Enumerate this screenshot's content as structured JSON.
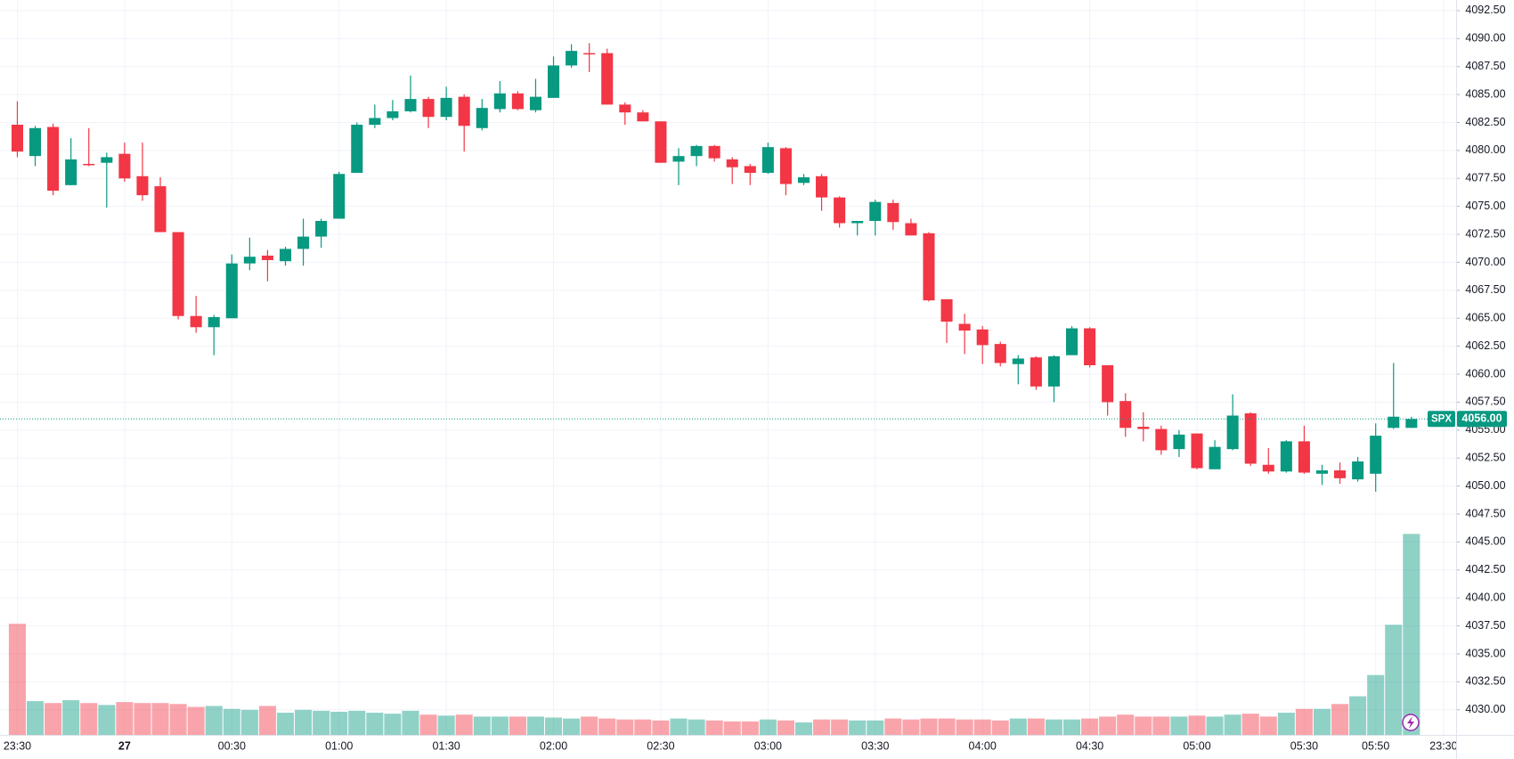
{
  "chart_data": {
    "type": "candlestick",
    "open": [
      4082.3,
      4079.5,
      4082.1,
      4076.9,
      4078.8,
      4078.9,
      4079.7,
      4077.7,
      4076.8,
      4072.7,
      4065.2,
      4064.2,
      4065.0,
      4069.9,
      4070.6,
      4070.1,
      4071.2,
      4072.3,
      4073.9,
      4078.0,
      4082.3,
      4082.9,
      4083.5,
      4084.6,
      4083.0,
      4084.8,
      4082.0,
      4083.7,
      4085.1,
      4083.6,
      4084.7,
      4087.6,
      4088.7,
      4088.7,
      4084.1,
      4083.4,
      4082.6,
      4079.0,
      4079.5,
      4080.4,
      4079.2,
      4078.6,
      4078.0,
      4080.2,
      4077.1,
      4077.7,
      4075.8,
      4073.5,
      4073.7,
      4075.3,
      4073.5,
      4072.6,
      4066.7,
      4064.5,
      4064.0,
      4062.7,
      4060.9,
      4061.5,
      4058.9,
      4061.7,
      4064.1,
      4060.8,
      4057.6,
      4055.3,
      4055.1,
      4053.3,
      4054.7,
      4051.5,
      4053.3,
      4056.5,
      4051.9,
      4051.3,
      4054.0,
      4051.1,
      4051.4,
      4050.6,
      4051.1,
      4055.2,
      4055.2
    ],
    "high": [
      4084.4,
      4082.2,
      4082.4,
      4081.1,
      4082.0,
      4079.8,
      4080.7,
      4080.7,
      4077.6,
      4072.7,
      4067.0,
      4065.3,
      4070.7,
      4072.2,
      4071.1,
      4071.4,
      4073.9,
      4073.9,
      4078.1,
      4082.5,
      4084.1,
      4084.5,
      4086.7,
      4084.8,
      4085.7,
      4085.0,
      4084.6,
      4086.2,
      4085.3,
      4086.4,
      4088.4,
      4089.5,
      4089.6,
      4089.1,
      4084.3,
      4083.6,
      4082.6,
      4080.2,
      4080.5,
      4080.5,
      4079.4,
      4078.8,
      4080.7,
      4080.3,
      4077.9,
      4077.9,
      4075.9,
      4073.7,
      4075.6,
      4075.6,
      4073.9,
      4072.7,
      4066.7,
      4065.4,
      4064.3,
      4062.9,
      4061.7,
      4061.6,
      4061.7,
      4064.3,
      4064.2,
      4060.8,
      4058.3,
      4056.6,
      4055.4,
      4055.0,
      4054.7,
      4054.1,
      4058.2,
      4056.6,
      4053.4,
      4054.1,
      4055.4,
      4051.9,
      4052.1,
      4052.6,
      4055.6,
      4061.0,
      4056.2
    ],
    "low": [
      4079.4,
      4078.6,
      4076.0,
      4076.9,
      4078.6,
      4074.9,
      4077.2,
      4075.5,
      4072.7,
      4064.9,
      4063.7,
      4061.7,
      4065.0,
      4069.3,
      4068.3,
      4069.7,
      4069.7,
      4071.3,
      4073.9,
      4078.0,
      4082.0,
      4082.7,
      4083.4,
      4082.0,
      4082.7,
      4079.9,
      4081.8,
      4083.4,
      4083.6,
      4083.4,
      4084.7,
      4087.4,
      4087.0,
      4084.1,
      4082.3,
      4082.6,
      4078.9,
      4076.9,
      4078.6,
      4079.0,
      4077.0,
      4076.9,
      4077.9,
      4076.0,
      4076.9,
      4074.6,
      4073.1,
      4072.4,
      4072.4,
      4072.9,
      4072.4,
      4066.5,
      4062.8,
      4061.8,
      4060.9,
      4060.7,
      4059.1,
      4058.6,
      4057.5,
      4061.7,
      4060.6,
      4056.3,
      4054.4,
      4054.0,
      4052.8,
      4052.6,
      4051.5,
      4051.5,
      4053.2,
      4051.8,
      4051.1,
      4051.2,
      4051.1,
      4050.1,
      4050.2,
      4050.4,
      4049.5,
      4055.1,
      4055.2
    ],
    "close": [
      4079.9,
      4082.0,
      4076.4,
      4079.2,
      4078.7,
      4079.4,
      4077.5,
      4076.0,
      4072.7,
      4065.2,
      4064.2,
      4065.1,
      4069.9,
      4070.5,
      4070.2,
      4071.2,
      4072.3,
      4073.7,
      4077.9,
      4082.3,
      4082.9,
      4083.5,
      4084.6,
      4083.0,
      4084.7,
      4082.2,
      4083.8,
      4085.1,
      4083.7,
      4084.8,
      4087.6,
      4088.9,
      4088.6,
      4084.1,
      4083.4,
      4082.6,
      4078.9,
      4079.5,
      4080.4,
      4079.3,
      4078.5,
      4078.0,
      4080.3,
      4077.0,
      4077.6,
      4075.8,
      4073.5,
      4073.7,
      4075.4,
      4073.6,
      4072.4,
      4066.6,
      4064.7,
      4063.9,
      4062.6,
      4061.0,
      4061.4,
      4058.9,
      4061.6,
      4064.1,
      4060.8,
      4057.5,
      4055.2,
      4055.1,
      4053.2,
      4054.6,
      4051.6,
      4053.5,
      4056.3,
      4052.0,
      4051.3,
      4054.0,
      4051.2,
      4051.4,
      4050.7,
      4052.2,
      4054.5,
      4056.2,
      4056.0
    ],
    "volume": [
      115,
      35,
      33,
      36,
      33,
      31,
      34,
      33,
      33,
      32,
      29,
      30,
      27,
      26,
      30,
      23,
      26,
      25,
      24,
      25,
      23,
      22,
      25,
      21,
      20,
      21,
      19,
      19,
      19,
      19,
      18,
      17,
      19,
      17,
      16,
      16,
      15,
      17,
      16,
      15,
      14,
      14,
      16,
      15,
      13,
      16,
      16,
      15,
      15,
      17,
      16,
      17,
      17,
      16,
      16,
      15,
      17,
      17,
      16,
      16,
      17,
      19,
      21,
      19,
      19,
      19,
      20,
      19,
      21,
      22,
      19,
      23,
      27,
      27,
      32,
      40,
      62,
      114,
      208
    ],
    "up_color": "#089981",
    "down_color": "#f23645",
    "ylim": [
      4027.75,
      4093.45
    ],
    "yticks": [
      {
        "value": 4030,
        "label": "4030.00"
      },
      {
        "value": 4032.5,
        "label": "4032.50"
      },
      {
        "value": 4035,
        "label": "4035.00"
      },
      {
        "value": 4037.5,
        "label": "4037.50"
      },
      {
        "value": 4040,
        "label": "4040.00"
      },
      {
        "value": 4042.5,
        "label": "4042.50"
      },
      {
        "value": 4045,
        "label": "4045.00"
      },
      {
        "value": 4047.5,
        "label": "4047.50"
      },
      {
        "value": 4050,
        "label": "4050.00"
      },
      {
        "value": 4052.5,
        "label": "4052.50"
      },
      {
        "value": 4055,
        "label": "4055.00"
      },
      {
        "value": 4057.5,
        "label": "4057.50"
      },
      {
        "value": 4060,
        "label": "4060.00"
      },
      {
        "value": 4062.5,
        "label": "4062.50"
      },
      {
        "value": 4065,
        "label": "4065.00"
      },
      {
        "value": 4067.5,
        "label": "4067.50"
      },
      {
        "value": 4070,
        "label": "4070.00"
      },
      {
        "value": 4072.5,
        "label": "4072.50"
      },
      {
        "value": 4075,
        "label": "4075.00"
      },
      {
        "value": 4077.5,
        "label": "4077.50"
      },
      {
        "value": 4080,
        "label": "4080.00"
      },
      {
        "value": 4082.5,
        "label": "4082.50"
      },
      {
        "value": 4085,
        "label": "4085.00"
      },
      {
        "value": 4087.5,
        "label": "4087.50"
      },
      {
        "value": 4090,
        "label": "4090.00"
      },
      {
        "value": 4092.5,
        "label": "4092.50"
      }
    ],
    "xlim": [
      -0.97,
      80.5
    ],
    "xticks": [
      {
        "value": 0,
        "label": "23:30"
      },
      {
        "value": 6,
        "label": "27"
      },
      {
        "value": 12,
        "label": "00:30"
      },
      {
        "value": 18,
        "label": "01:00"
      },
      {
        "value": 24,
        "label": "01:30"
      },
      {
        "value": 30,
        "label": "02:00"
      },
      {
        "value": 36,
        "label": "02:30"
      },
      {
        "value": 42,
        "label": "03:00"
      },
      {
        "value": 48,
        "label": "03:30"
      },
      {
        "value": 54,
        "label": "04:00"
      },
      {
        "value": 60,
        "label": "04:30"
      },
      {
        "value": 66,
        "label": "05:00"
      },
      {
        "value": 72,
        "label": "05:30"
      },
      {
        "value": 76,
        "label": "05:50"
      },
      {
        "value": 79.8,
        "label": "23:30"
      }
    ],
    "grid": true,
    "price_line": {
      "label": "SPX",
      "value": 4056,
      "value_label": "4056.00"
    }
  }
}
